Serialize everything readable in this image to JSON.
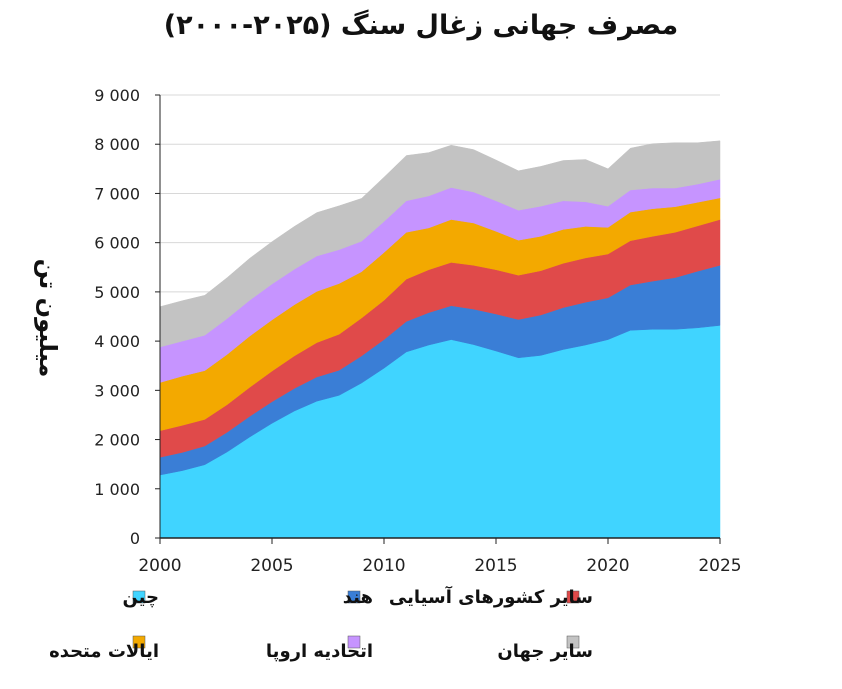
{
  "chart_data": {
    "type": "area",
    "stacked": true,
    "title": "مصرف جهانی زغال سنگ (۲۰۲۵-۲۰۰۰)",
    "xlabel": "",
    "ylabel": "میلیون تن",
    "x": [
      2000,
      2001,
      2002,
      2003,
      2004,
      2005,
      2006,
      2007,
      2008,
      2009,
      2010,
      2011,
      2012,
      2013,
      2014,
      2015,
      2016,
      2017,
      2018,
      2019,
      2020,
      2021,
      2022,
      2023,
      2024,
      2025
    ],
    "xlim": [
      2000,
      2025
    ],
    "ylim": [
      0,
      9000
    ],
    "xticks": [
      2000,
      2005,
      2010,
      2015,
      2020,
      2025
    ],
    "yticks": [
      0,
      1000,
      2000,
      3000,
      4000,
      5000,
      6000,
      7000,
      8000,
      9000
    ],
    "ytick_labels": [
      "0",
      "1 000",
      "2 000",
      "3 000",
      "4 000",
      "5 000",
      "6 000",
      "7 000",
      "8 000",
      "9 000"
    ],
    "grid": true,
    "series": [
      {
        "name": "چین",
        "color": "#40d4ff",
        "values": [
          1280,
          1370,
          1490,
          1750,
          2050,
          2330,
          2580,
          2780,
          2900,
          3150,
          3450,
          3780,
          3920,
          4030,
          3930,
          3800,
          3660,
          3710,
          3830,
          3920,
          4030,
          4220,
          4240,
          4240,
          4270,
          4320
        ]
      },
      {
        "name": "هند",
        "color": "#3a7ed6",
        "values": [
          360,
          370,
          380,
          400,
          420,
          440,
          460,
          490,
          510,
          550,
          580,
          620,
          660,
          690,
          720,
          750,
          780,
          820,
          850,
          870,
          850,
          920,
          980,
          1050,
          1150,
          1220
        ]
      },
      {
        "name": "سایر کشورهای آسیایی",
        "color": "#e04a4a",
        "values": [
          540,
          550,
          540,
          560,
          590,
          620,
          660,
          700,
          730,
          770,
          800,
          860,
          870,
          880,
          890,
          900,
          900,
          900,
          900,
          900,
          890,
          900,
          910,
          920,
          920,
          930
        ]
      },
      {
        "name": "ایالات متحده",
        "color": "#f3a900",
        "values": [
          980,
          1000,
          990,
          1020,
          1040,
          1040,
          1040,
          1040,
          1030,
          940,
          970,
          950,
          850,
          870,
          860,
          780,
          710,
          700,
          690,
          640,
          540,
          580,
          560,
          520,
          480,
          440
        ]
      },
      {
        "name": "اتحادیه اروپا",
        "color": "#c694ff",
        "values": [
          720,
          710,
          720,
          730,
          730,
          730,
          720,
          720,
          690,
          620,
          630,
          640,
          650,
          650,
          630,
          620,
          610,
          610,
          580,
          500,
          430,
          450,
          420,
          380,
          370,
          380
        ]
      },
      {
        "name": "سایر جهان",
        "color": "#c3c3c3",
        "values": [
          820,
          820,
          810,
          830,
          850,
          860,
          870,
          880,
          890,
          870,
          900,
          920,
          880,
          860,
          860,
          830,
          800,
          810,
          820,
          860,
          760,
          850,
          900,
          920,
          840,
          780
        ]
      }
    ]
  }
}
